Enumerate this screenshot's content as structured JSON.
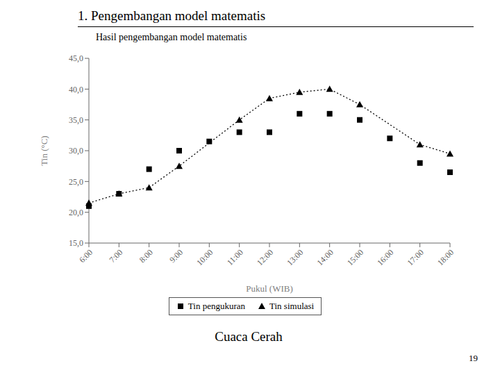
{
  "chart_data": {
    "type": "line",
    "title": "1. Pengembangan model matematis",
    "subtitle": "Hasil pengembangan model matematis",
    "caption": "Cuaca Cerah",
    "page_number": "19",
    "x_label": "Pukul (WIB)",
    "y_label": "Tin (°C)",
    "categories": [
      "6:00",
      "7:00",
      "8:00",
      "9:00",
      "10:00",
      "11:00",
      "12:00",
      "13:00",
      "14:00",
      "15:00",
      "16:00",
      "17:00",
      "18:00"
    ],
    "series": [
      {
        "name": "Tin pengukuran",
        "type": "scatter",
        "marker": "square",
        "color": "#000000",
        "values": [
          21.0,
          23.0,
          27.0,
          30.0,
          31.5,
          33.0,
          33.0,
          36.0,
          36.0,
          35.0,
          32.0,
          28.0,
          26.5
        ]
      },
      {
        "name": "Tin simulasi",
        "type": "line",
        "marker": "triangle",
        "line_style": "dotted",
        "color": "#000000",
        "values": [
          21.5,
          23.0,
          24.0,
          27.5,
          null,
          35.0,
          38.5,
          39.5,
          40.0,
          37.5,
          null,
          31.0,
          29.5
        ]
      }
    ],
    "ylim": [
      15.0,
      45.0
    ],
    "yticks": [
      {
        "value": 15.0,
        "label": "15,0"
      },
      {
        "value": 20.0,
        "label": "20,0"
      },
      {
        "value": 25.0,
        "label": "25,0"
      },
      {
        "value": 30.0,
        "label": "30,0"
      },
      {
        "value": 35.0,
        "label": "35,0"
      },
      {
        "value": 40.0,
        "label": "40,0"
      },
      {
        "value": 45.0,
        "label": "45,0"
      }
    ],
    "grid": false,
    "legend": "bottom"
  }
}
